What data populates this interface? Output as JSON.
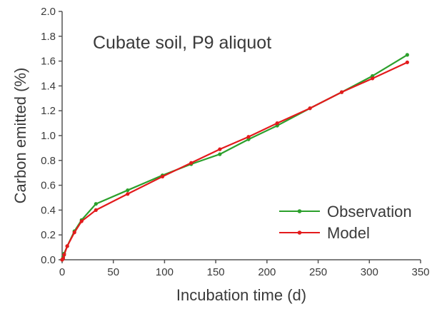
{
  "chart_data": {
    "type": "line",
    "title": "Cubate soil, P9 aliquot",
    "xlabel": "Incubation time (d)",
    "ylabel": "Carbon emitted (%)",
    "xlim": [
      0,
      350
    ],
    "ylim": [
      0,
      2.0
    ],
    "xticks": [
      0,
      50,
      100,
      150,
      200,
      250,
      300,
      350
    ],
    "yticks": [
      0.0,
      0.2,
      0.4,
      0.6,
      0.8,
      1.0,
      1.2,
      1.4,
      1.6,
      1.8,
      2.0
    ],
    "ytick_labels": [
      "0.0",
      "0.2",
      "0.4",
      "0.6",
      "0.8",
      "1.0",
      "1.2",
      "1.4",
      "1.6",
      "1.8",
      "2.0"
    ],
    "grid": false,
    "legend_position": "bottom-right",
    "series": [
      {
        "name": "Observation",
        "color": "#2ca02c",
        "points": [
          [
            0,
            0.0
          ],
          [
            1,
            0.02
          ],
          [
            2,
            0.05
          ],
          [
            5,
            0.11
          ],
          [
            12,
            0.23
          ],
          [
            19,
            0.32
          ],
          [
            33,
            0.45
          ],
          [
            64,
            0.56
          ],
          [
            98,
            0.68
          ],
          [
            126,
            0.77
          ],
          [
            154,
            0.85
          ],
          [
            182,
            0.97
          ],
          [
            210,
            1.08
          ],
          [
            242,
            1.22
          ],
          [
            273,
            1.35
          ],
          [
            303,
            1.48
          ],
          [
            337,
            1.65
          ]
        ]
      },
      {
        "name": "Model",
        "color": "#e31a1c",
        "points": [
          [
            0,
            0.0
          ],
          [
            1,
            0.01
          ],
          [
            2,
            0.04
          ],
          [
            5,
            0.11
          ],
          [
            12,
            0.22
          ],
          [
            19,
            0.31
          ],
          [
            33,
            0.4
          ],
          [
            64,
            0.53
          ],
          [
            98,
            0.67
          ],
          [
            126,
            0.78
          ],
          [
            154,
            0.89
          ],
          [
            182,
            0.99
          ],
          [
            210,
            1.1
          ],
          [
            242,
            1.22
          ],
          [
            273,
            1.35
          ],
          [
            303,
            1.46
          ],
          [
            337,
            1.59
          ]
        ]
      }
    ]
  }
}
